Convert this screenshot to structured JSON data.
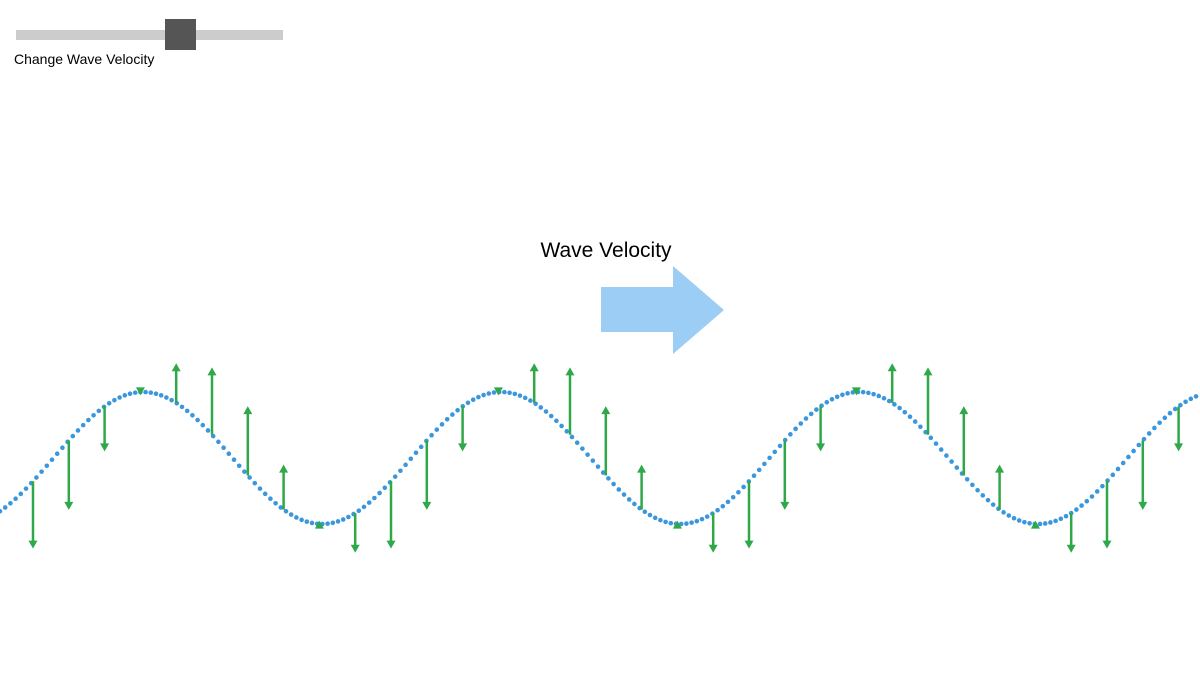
{
  "slider": {
    "label": "Change Wave Velocity"
  },
  "velocity_label": "Wave Velocity"
}
